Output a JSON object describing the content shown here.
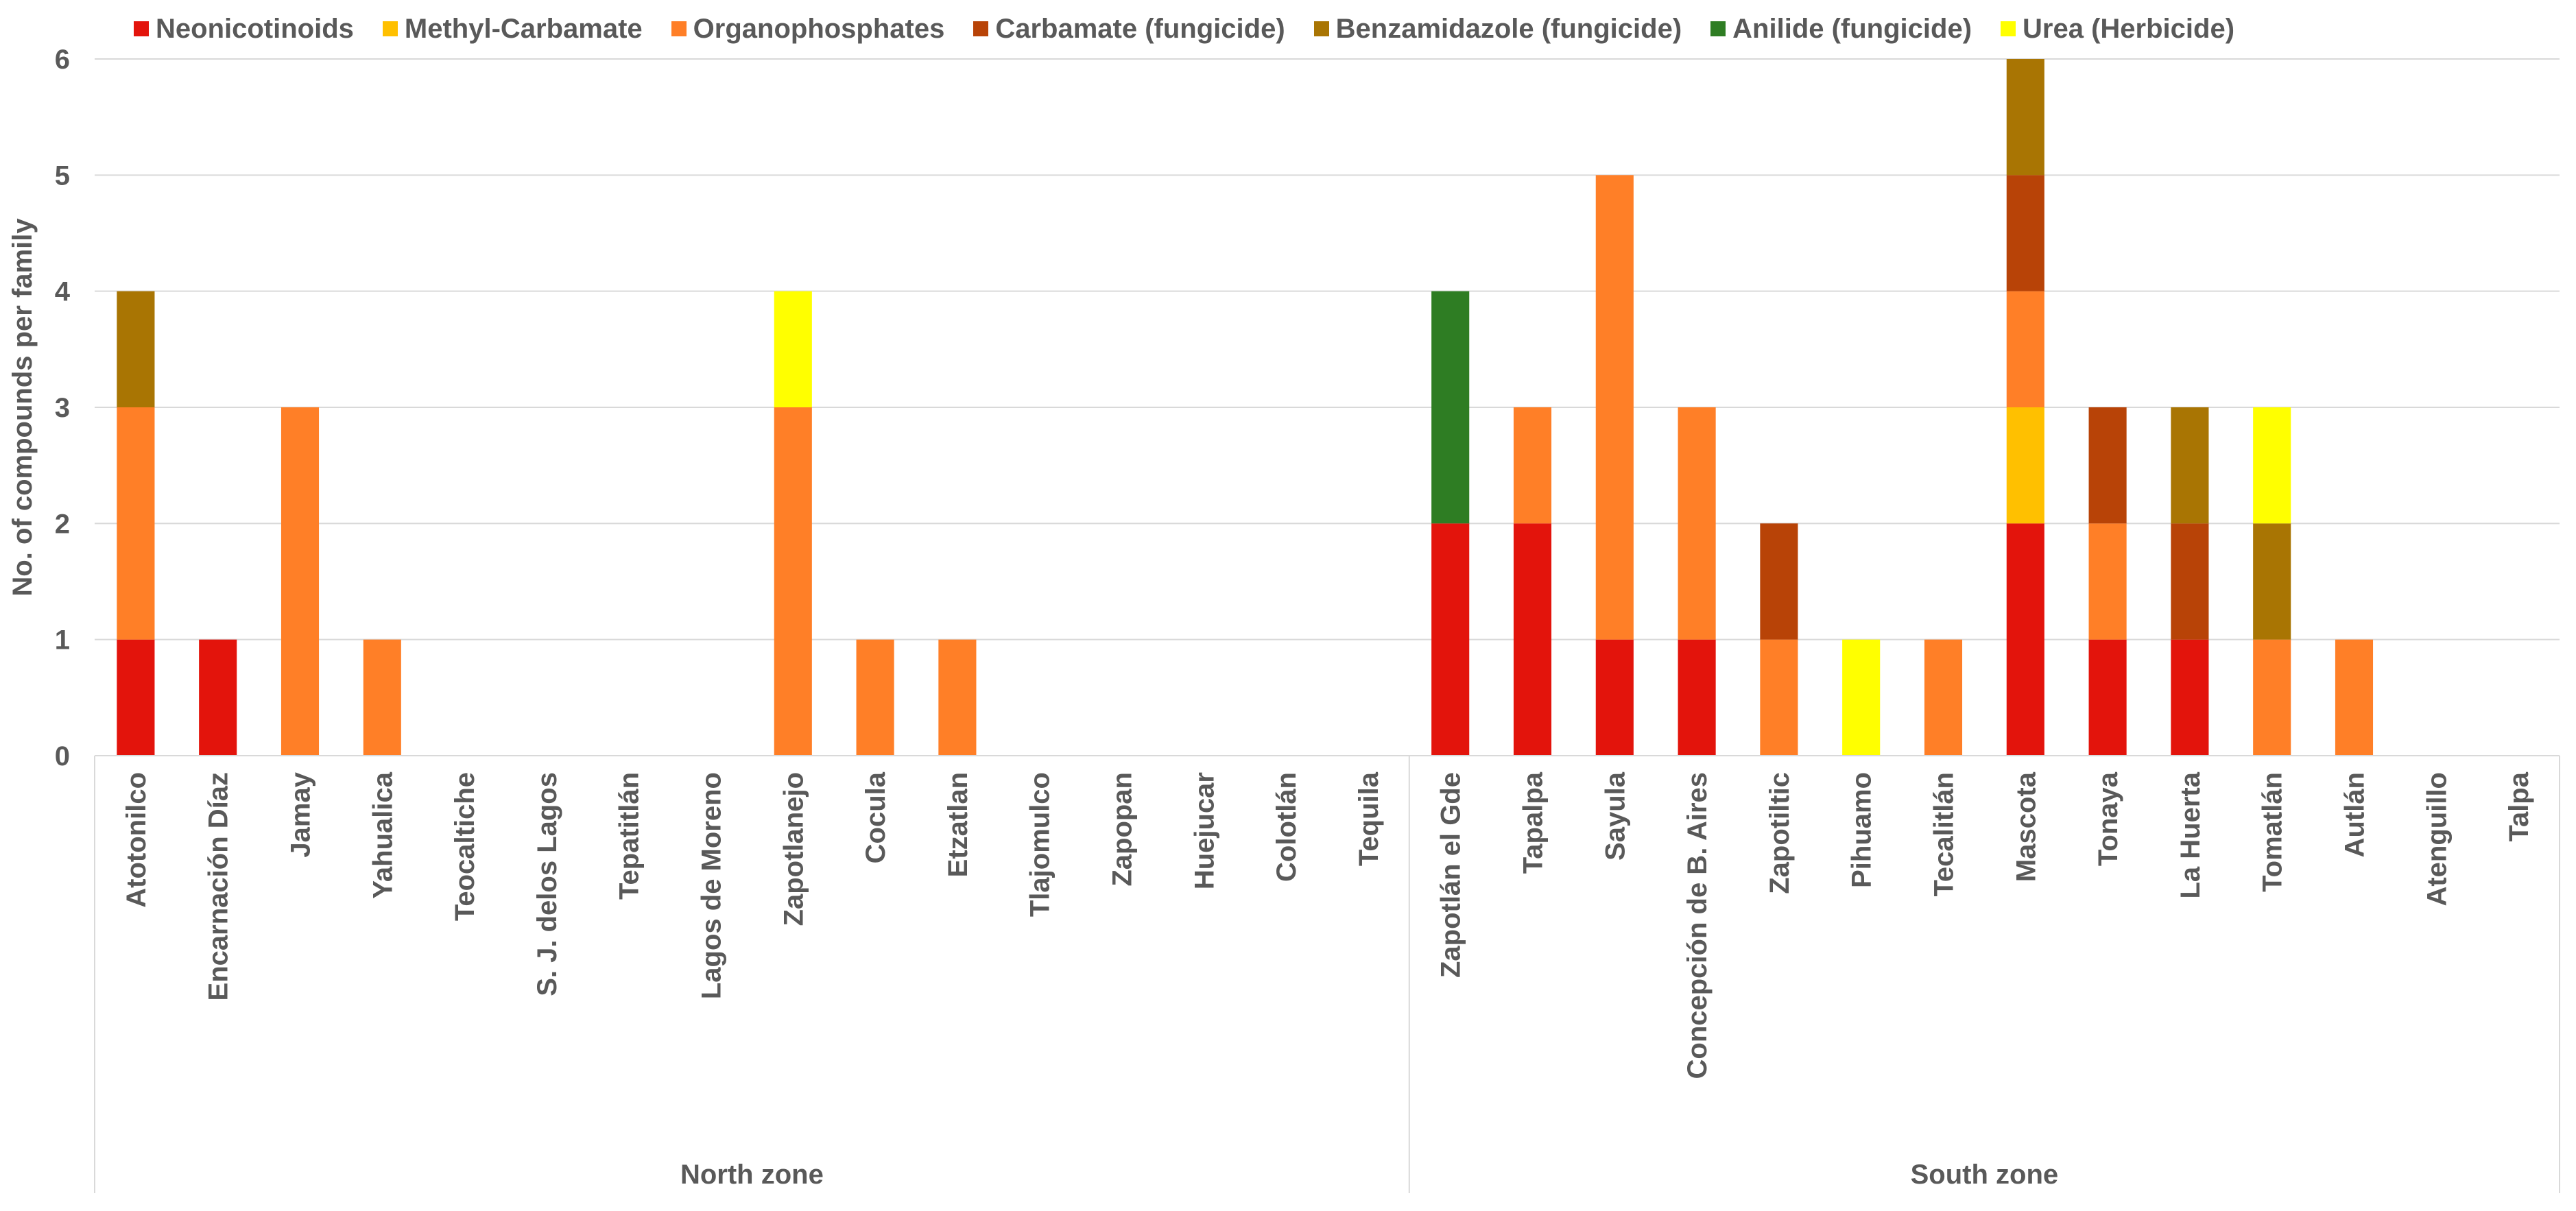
{
  "chart_data": {
    "type": "bar",
    "stacked": true,
    "title": "",
    "xlabel": "",
    "ylabel": "No. of compounds per family",
    "ylim": [
      0,
      6
    ],
    "yticks": [
      "0",
      "1",
      "2",
      "3",
      "4",
      "5",
      "6"
    ],
    "grid": true,
    "legend_position": "top",
    "groups": [
      {
        "label": "North zone",
        "count": 16
      },
      {
        "label": "South zone",
        "count": 14
      }
    ],
    "categories": [
      "Atotonilco",
      "Encarnación Díaz",
      "Jamay",
      "Yahualica",
      "Teocaltiche",
      "S. J. delos Lagos",
      "Tepatitlán",
      "Lagos de Moreno",
      "Zapotlanejo",
      "Cocula",
      "Etzatlan",
      "Tlajomulco",
      "Zapopan",
      "Huejucar",
      "Colotlán",
      "Tequila",
      "Zapotlán el Gde",
      "Tapalpa",
      "Sayula",
      "Concepción de B. Aires",
      "Zapotiltic",
      "Pihuamo",
      "Tecalitlán",
      "Mascota",
      "Tonaya",
      "La Huerta",
      "Tomatlán",
      "Autlán",
      "Atenguillo",
      "Talpa"
    ],
    "series": [
      {
        "name": "Neonicotinoids",
        "color": "#E3140C",
        "values": [
          1,
          1,
          0,
          0,
          0,
          0,
          0,
          0,
          0,
          0,
          0,
          0,
          0,
          0,
          0,
          0,
          2,
          2,
          1,
          1,
          0,
          0,
          0,
          2,
          1,
          1,
          0,
          0,
          0,
          0
        ]
      },
      {
        "name": "Methyl-Carbamate",
        "color": "#FFC000",
        "values": [
          0,
          0,
          0,
          0,
          0,
          0,
          0,
          0,
          0,
          0,
          0,
          0,
          0,
          0,
          0,
          0,
          0,
          0,
          0,
          0,
          0,
          0,
          0,
          1,
          0,
          0,
          0,
          0,
          0,
          0
        ]
      },
      {
        "name": "Organophosphates",
        "color": "#FF7F27",
        "values": [
          2,
          0,
          3,
          1,
          0,
          0,
          0,
          0,
          3,
          1,
          1,
          0,
          0,
          0,
          0,
          0,
          0,
          1,
          4,
          2,
          1,
          0,
          1,
          1,
          1,
          0,
          1,
          1,
          0,
          0
        ]
      },
      {
        "name": "Carbamate (fungicide)",
        "color": "#B84307",
        "values": [
          0,
          0,
          0,
          0,
          0,
          0,
          0,
          0,
          0,
          0,
          0,
          0,
          0,
          0,
          0,
          0,
          0,
          0,
          0,
          0,
          1,
          0,
          0,
          1,
          1,
          1,
          0,
          0,
          0,
          0
        ]
      },
      {
        "name": "Benzamidazole (fungicide)",
        "color": "#A97503",
        "values": [
          1,
          0,
          0,
          0,
          0,
          0,
          0,
          0,
          0,
          0,
          0,
          0,
          0,
          0,
          0,
          0,
          0,
          0,
          0,
          0,
          0,
          0,
          0,
          1,
          0,
          1,
          1,
          0,
          0,
          0
        ]
      },
      {
        "name": "Anilide (fungicide)",
        "color": "#2E7D23",
        "values": [
          0,
          0,
          0,
          0,
          0,
          0,
          0,
          0,
          0,
          0,
          0,
          0,
          0,
          0,
          0,
          0,
          2,
          0,
          0,
          0,
          0,
          0,
          0,
          0,
          0,
          0,
          0,
          0,
          0,
          0
        ]
      },
      {
        "name": "Urea (Herbicide)",
        "color": "#FFFF00",
        "values": [
          0,
          0,
          0,
          0,
          0,
          0,
          0,
          0,
          1,
          0,
          0,
          0,
          0,
          0,
          0,
          0,
          0,
          0,
          0,
          0,
          0,
          1,
          0,
          0,
          0,
          0,
          1,
          0,
          0,
          0
        ]
      }
    ]
  }
}
